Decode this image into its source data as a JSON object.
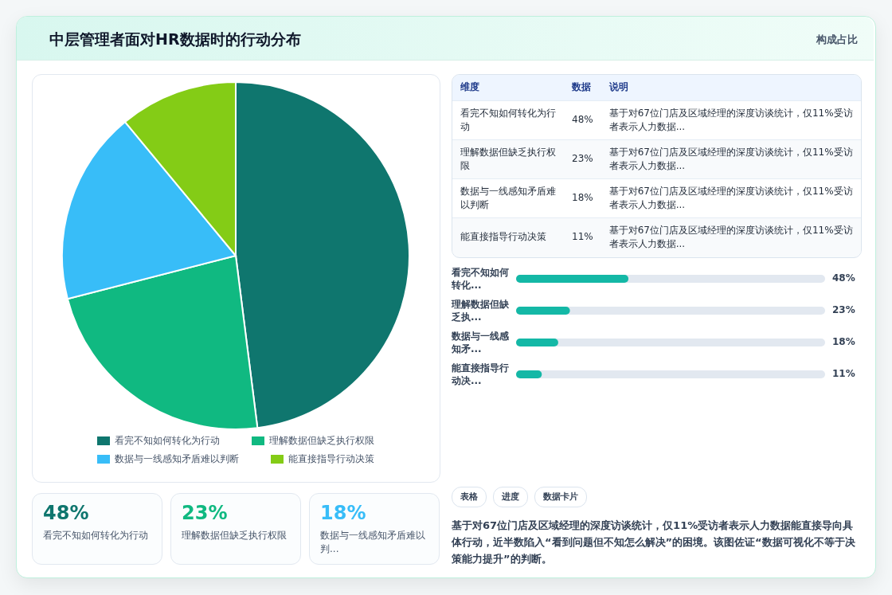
{
  "chart_data": [
    {
      "type": "other",
      "title": "中层管理者面对HR数据时的行动分布",
      "subtitle": "构成占比"
    },
    {
      "type": "pie",
      "categories": [
        "看完不知如何转化为行动",
        "理解数据但缺乏执行权限",
        "数据与一线感知矛盾难以判断",
        "能直接指导行动决策"
      ],
      "values": [
        48,
        23,
        18,
        11
      ],
      "colors": [
        "#0f766e",
        "#10b981",
        "#38bdf8",
        "#84cc16"
      ],
      "legend": "bottom"
    },
    {
      "type": "other",
      "annotations": [
        "维度",
        "数据",
        "说明",
        "看完不知如何转化为行动",
        "48%",
        "基于对67位门店及区域经理的深度访谈统计，仅11%受访者表示人力数据...",
        "理解数据但缺乏执行权限",
        "23%",
        "基于对67位门店及区域经理的深度访谈统计，仅11%受访者表示人力数据...",
        "数据与一线感知矛盾难以判断",
        "18%",
        "基于对67位门店及区域经理的深度访谈统计，仅11%受访者表示人力数据...",
        "能直接指导行动决策",
        "11%",
        "基于对67位门店及区域经理的深度访谈统计，仅11%受访者表示人力数据..."
      ]
    },
    {
      "type": "bar",
      "orientation": "horizontal",
      "categories": [
        "看完不知如何转化...",
        "理解数据但缺乏执...",
        "数据与一线感知矛...",
        "能直接指导行动决..."
      ],
      "values": [
        48,
        23,
        18,
        11
      ],
      "value_labels": [
        "48%",
        "23%",
        "18%",
        "11%"
      ],
      "color": "#14b8a6",
      "xlim": [
        0,
        132
      ]
    },
    {
      "type": "other",
      "annotations": [
        "表格",
        "进度",
        "数据卡片",
        "基于对67位门店及区域经理的深度访谈统计，仅11%受访者表示人力数据能直接导向具体行动，近半数陷入“看到问题但不知怎么解决”的困境。该图佐证“数据可视化不等于决策能力提升”的判断。"
      ]
    },
    {
      "type": "other",
      "annotations": [
        "48%",
        "看完不知如何转化为行动",
        "23%",
        "理解数据但缺乏执行权限",
        "18%",
        "数据与一线感知矛盾难以判..."
      ]
    }
  ]
}
